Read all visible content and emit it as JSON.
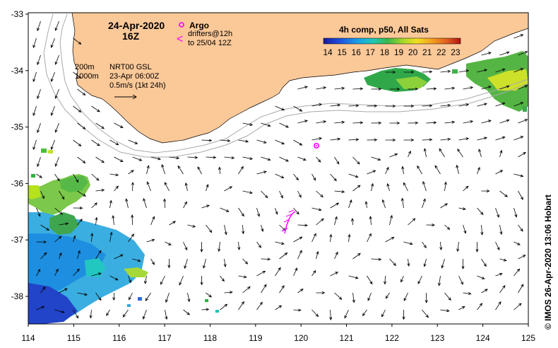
{
  "map": {
    "date_title": "24-Apr-2020",
    "time_title": "16Z",
    "legend_argo": "Argo",
    "legend_drifters_1": "drifters@12h",
    "legend_drifters_2": "to 25/04 12Z",
    "drifter_symbol": "<",
    "isobath_200": "200m",
    "isobath_1000": "1000m",
    "model_name": "NRT00 GSL",
    "model_time": "23-Apr 06:00Z",
    "scale_label": "0.5m/s (1kt 24h)",
    "sst_title": "4h comp, p50, All Sats",
    "sst_ticks": [
      "14",
      "15",
      "16",
      "17",
      "18",
      "19",
      "20",
      "21",
      "22",
      "23"
    ],
    "x_ticks": [
      "114",
      "115",
      "116",
      "117",
      "118",
      "119",
      "120",
      "121",
      "122",
      "123",
      "124",
      "125"
    ],
    "y_ticks": [
      "-33",
      "-34",
      "-35",
      "-36",
      "-37",
      "-38"
    ],
    "credit": "© IMOS 26-Apr-2020 13:06 Hobart"
  },
  "colors": {
    "land": "#fbc898",
    "argo": "#ff00ff",
    "isobath": "#aaaaaa"
  },
  "geo": {
    "lon_range": [
      114,
      125
    ],
    "lat_range": [
      -38.5,
      -33
    ]
  }
}
